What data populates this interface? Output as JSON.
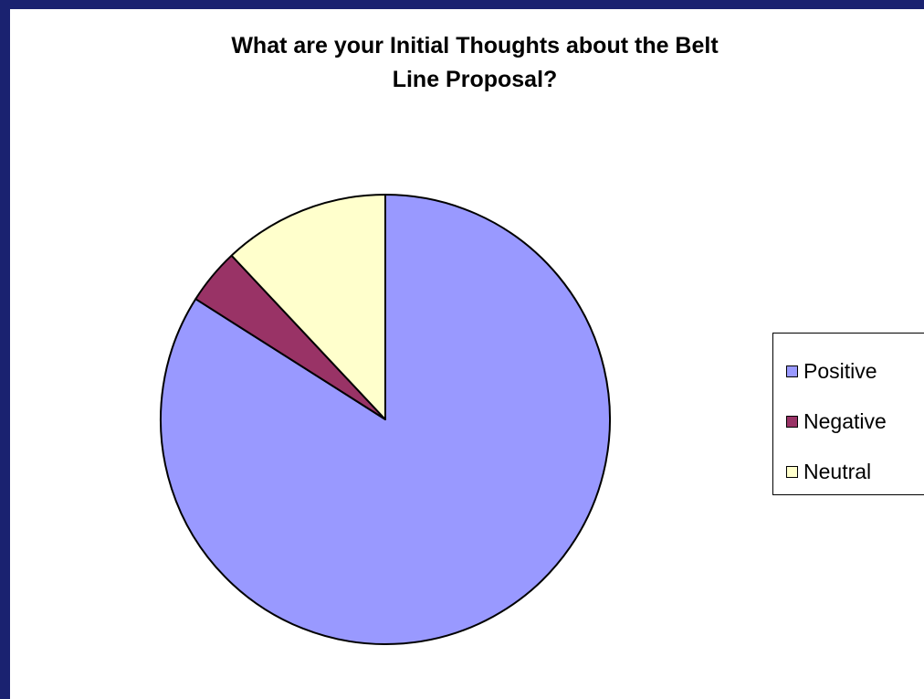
{
  "chart_data": {
    "type": "pie",
    "title_lines": [
      "What are your Initial Thoughts about the Belt",
      "Line Proposal?"
    ],
    "categories": [
      "Positive",
      "Negative",
      "Neutral"
    ],
    "values": [
      84,
      4,
      12
    ],
    "colors": [
      "#9999ff",
      "#993366",
      "#ffffcc"
    ],
    "legend_position": "right"
  }
}
